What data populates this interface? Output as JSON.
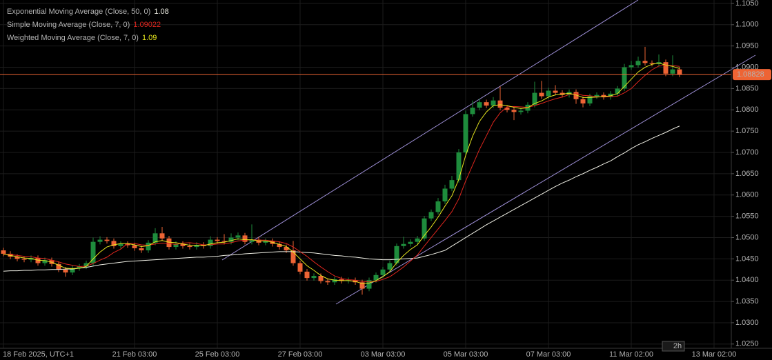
{
  "chart_data": {
    "type": "candlestick",
    "categories": [
      "18 Feb 2025, UTC+1",
      null,
      null,
      null,
      null,
      null,
      null,
      null,
      null,
      null,
      null,
      null,
      null,
      null,
      null,
      null,
      null,
      null,
      null,
      "21 Feb 03:00",
      null,
      null,
      null,
      null,
      null,
      null,
      null,
      null,
      null,
      null,
      null,
      "25 Feb 03:00",
      null,
      null,
      null,
      null,
      null,
      null,
      null,
      null,
      null,
      null,
      null,
      "27 Feb 03:00",
      null,
      null,
      null,
      null,
      null,
      null,
      null,
      null,
      null,
      null,
      null,
      "03 Mar 03:00",
      null,
      null,
      null,
      null,
      null,
      null,
      null,
      null,
      null,
      null,
      null,
      "05 Mar 03:00",
      null,
      null,
      null,
      null,
      null,
      null,
      null,
      null,
      null,
      null,
      null,
      "07 Mar 03:00",
      null,
      null,
      null,
      null,
      null,
      null,
      null,
      null,
      null,
      null,
      null,
      "11 Mar 02:00",
      null,
      null,
      null,
      null,
      null,
      null,
      null,
      null,
      null,
      null,
      null,
      "13 Mar 02:00"
    ],
    "ohlc": [
      [
        1.047,
        1.0476,
        1.0456,
        1.0462
      ],
      [
        1.0462,
        1.0468,
        1.0449,
        1.0455
      ],
      [
        1.0455,
        1.0461,
        1.0444,
        1.045
      ],
      [
        1.045,
        1.0456,
        1.0442,
        1.0448
      ],
      [
        1.0448,
        1.0458,
        1.0442,
        1.0452
      ],
      [
        1.0452,
        1.0458,
        1.0434,
        1.044
      ],
      [
        1.044,
        1.0453,
        1.0434,
        1.0447
      ],
      [
        1.0447,
        1.0453,
        1.0432,
        1.0438
      ],
      [
        1.0438,
        1.0444,
        1.0419,
        1.0425
      ],
      [
        1.0425,
        1.0431,
        1.0408,
        1.0418
      ],
      [
        1.0418,
        1.0434,
        1.0412,
        1.0428
      ],
      [
        1.0428,
        1.0438,
        1.0422,
        1.0432
      ],
      [
        1.0432,
        1.0446,
        1.0426,
        1.044
      ],
      [
        1.044,
        1.05,
        1.0434,
        1.049
      ],
      [
        1.049,
        1.0503,
        1.0484,
        1.0495
      ],
      [
        1.0495,
        1.0501,
        1.0486,
        1.0492
      ],
      [
        1.0492,
        1.0498,
        1.0474,
        1.048
      ],
      [
        1.048,
        1.0491,
        1.0474,
        1.0485
      ],
      [
        1.0485,
        1.0491,
        1.0476,
        1.0482
      ],
      [
        1.0482,
        1.0488,
        1.0469,
        1.0475
      ],
      [
        1.0475,
        1.0481,
        1.0464,
        1.047
      ],
      [
        1.047,
        1.0494,
        1.0464,
        1.0488
      ],
      [
        1.0488,
        1.0522,
        1.0482,
        1.051
      ],
      [
        1.051,
        1.0525,
        1.0492,
        1.0498
      ],
      [
        1.0498,
        1.0504,
        1.0472,
        1.0478
      ],
      [
        1.0478,
        1.0491,
        1.0472,
        1.0485
      ],
      [
        1.0485,
        1.0491,
        1.0474,
        1.048
      ],
      [
        1.048,
        1.0486,
        1.0472,
        1.0478
      ],
      [
        1.0478,
        1.0489,
        1.0472,
        1.0483
      ],
      [
        1.0483,
        1.0489,
        1.0474,
        1.048
      ],
      [
        1.048,
        1.0503,
        1.0474,
        1.0495
      ],
      [
        1.0495,
        1.0501,
        1.0486,
        1.0492
      ],
      [
        1.0492,
        1.0508,
        1.0484,
        1.049
      ],
      [
        1.049,
        1.051,
        1.0484,
        1.05
      ],
      [
        1.05,
        1.0512,
        1.0494,
        1.0505
      ],
      [
        1.0505,
        1.0511,
        1.0484,
        1.049
      ],
      [
        1.049,
        1.0531,
        1.0484,
        1.0495
      ],
      [
        1.0495,
        1.0501,
        1.0482,
        1.0488
      ],
      [
        1.0488,
        1.0498,
        1.0482,
        1.0492
      ],
      [
        1.0492,
        1.0498,
        1.0479,
        1.0485
      ],
      [
        1.0485,
        1.0491,
        1.0472,
        1.0478
      ],
      [
        1.0478,
        1.0484,
        1.0464,
        1.047
      ],
      [
        1.047,
        1.0492,
        1.0434,
        1.044
      ],
      [
        1.044,
        1.0446,
        1.0414,
        1.042
      ],
      [
        1.042,
        1.0426,
        1.0399,
        1.0405
      ],
      [
        1.0405,
        1.0416,
        1.0399,
        1.041
      ],
      [
        1.041,
        1.0416,
        1.0392,
        1.0398
      ],
      [
        1.0398,
        1.0404,
        1.0389,
        1.0395
      ],
      [
        1.0395,
        1.0408,
        1.0389,
        1.0402
      ],
      [
        1.0402,
        1.0408,
        1.0392,
        1.0398
      ],
      [
        1.0398,
        1.0406,
        1.0392,
        1.04
      ],
      [
        1.04,
        1.0406,
        1.0389,
        1.0395
      ],
      [
        1.0395,
        1.0401,
        1.0366,
        1.038
      ],
      [
        1.038,
        1.0406,
        1.0374,
        1.04
      ],
      [
        1.04,
        1.0418,
        1.0394,
        1.0412
      ],
      [
        1.0412,
        1.0431,
        1.0406,
        1.0425
      ],
      [
        1.0425,
        1.0446,
        1.0419,
        1.044
      ],
      [
        1.044,
        1.0486,
        1.0434,
        1.048
      ],
      [
        1.048,
        1.0502,
        1.0474,
        1.0485
      ],
      [
        1.0485,
        1.0496,
        1.0479,
        1.049
      ],
      [
        1.049,
        1.0504,
        1.0484,
        1.0498
      ],
      [
        1.0498,
        1.0551,
        1.0492,
        1.0545
      ],
      [
        1.0545,
        1.0566,
        1.0539,
        1.056
      ],
      [
        1.056,
        1.0593,
        1.0554,
        1.0585
      ],
      [
        1.0585,
        1.0624,
        1.0579,
        1.0615
      ],
      [
        1.0615,
        1.0645,
        1.0609,
        1.0635
      ],
      [
        1.0635,
        1.0708,
        1.0629,
        1.07
      ],
      [
        1.07,
        1.0798,
        1.0694,
        1.079
      ],
      [
        1.079,
        1.0822,
        1.0784,
        1.0805
      ],
      [
        1.0805,
        1.0826,
        1.0799,
        1.0818
      ],
      [
        1.0818,
        1.0824,
        1.0804,
        1.081
      ],
      [
        1.081,
        1.083,
        1.0804,
        1.0822
      ],
      [
        1.0822,
        1.0855,
        1.0799,
        1.0805
      ],
      [
        1.0805,
        1.0811,
        1.0794,
        1.08
      ],
      [
        1.08,
        1.0806,
        1.0776,
        1.0795
      ],
      [
        1.0795,
        1.0804,
        1.0789,
        1.0798
      ],
      [
        1.0798,
        1.0818,
        1.0792,
        1.0812
      ],
      [
        1.0812,
        1.0866,
        1.0806,
        1.084
      ],
      [
        1.084,
        1.0868,
        1.0826,
        1.0832
      ],
      [
        1.0832,
        1.0852,
        1.0826,
        1.0845
      ],
      [
        1.0845,
        1.0858,
        1.0834,
        1.084
      ],
      [
        1.084,
        1.0846,
        1.0829,
        1.0835
      ],
      [
        1.0835,
        1.0848,
        1.0829,
        1.0842
      ],
      [
        1.0842,
        1.0848,
        1.0814,
        1.0825
      ],
      [
        1.0825,
        1.0831,
        1.0806,
        1.0815
      ],
      [
        1.0815,
        1.0838,
        1.0809,
        1.0832
      ],
      [
        1.0832,
        1.0841,
        1.0826,
        1.0835
      ],
      [
        1.0835,
        1.0841,
        1.0824,
        1.083
      ],
      [
        1.083,
        1.0844,
        1.0824,
        1.0838
      ],
      [
        1.0838,
        1.0856,
        1.0832,
        1.085
      ],
      [
        1.085,
        1.0908,
        1.0844,
        1.09
      ],
      [
        1.09,
        1.0915,
        1.0894,
        1.0905
      ],
      [
        1.0905,
        1.0925,
        1.0899,
        1.0915
      ],
      [
        1.0915,
        1.0948,
        1.0904,
        1.091
      ],
      [
        1.091,
        1.0916,
        1.0902,
        1.0908
      ],
      [
        1.0908,
        1.093,
        1.0902,
        1.0912
      ],
      [
        1.0912,
        1.0918,
        1.0879,
        1.0885
      ],
      [
        1.0885,
        1.0928,
        1.0879,
        1.0895
      ],
      [
        1.0895,
        1.0901,
        1.0877,
        1.0883
      ],
      null,
      null,
      null,
      null,
      null
    ],
    "up_color": "#1e8c3c",
    "down_color": "#ee6434",
    "series": [
      {
        "name": "Exponential Moving Average (Close, 50, 0)",
        "color": "#f0f0e6",
        "legend_value": 1.08,
        "values": [
          1.0421,
          1.0422,
          1.0422,
          1.0423,
          1.0423,
          1.0424,
          1.0424,
          1.0425,
          1.0425,
          1.0426,
          1.0426,
          1.0428,
          1.043,
          1.0433,
          1.0436,
          1.0438,
          1.044,
          1.0442,
          1.0444,
          1.0445,
          1.0446,
          1.0447,
          1.0448,
          1.0449,
          1.045,
          1.0451,
          1.0452,
          1.0453,
          1.0454,
          1.0454,
          1.0455,
          1.0456,
          1.0458,
          1.0459,
          1.046,
          1.0462,
          1.0463,
          1.0464,
          1.0465,
          1.0466,
          1.0467,
          1.0467,
          1.0467,
          1.0466,
          1.0465,
          1.0464,
          1.0462,
          1.046,
          1.0458,
          1.0457,
          1.0455,
          1.0454,
          1.0452,
          1.045,
          1.0449,
          1.0448,
          1.0448,
          1.0449,
          1.045,
          1.0451,
          1.0452,
          1.0456,
          1.046,
          1.0465,
          1.047,
          1.048,
          1.049,
          1.05,
          1.051,
          1.052,
          1.053,
          1.0539,
          1.0548,
          1.0557,
          1.0566,
          1.0575,
          1.0584,
          1.0593,
          1.0602,
          1.0611,
          1.062,
          1.0628,
          1.0635,
          1.0643,
          1.065,
          1.0658,
          1.0665,
          1.0673,
          1.068,
          1.069,
          1.0699,
          1.0709,
          1.0718,
          1.0725,
          1.0733,
          1.074,
          1.0747,
          1.0755,
          1.0762,
          null,
          null,
          null,
          null,
          null
        ]
      },
      {
        "name": "Simple Moving Average (Close, 7, 0)",
        "color": "#e0261e",
        "legend_value": 1.09022,
        "values": [
          1.046,
          1.046,
          1.0458,
          1.0456,
          1.0455,
          1.0452,
          1.0451,
          1.0447,
          1.0443,
          1.0438,
          1.0435,
          1.0432,
          1.0433,
          1.0439,
          1.0447,
          1.0454,
          1.0465,
          1.0473,
          1.0486,
          1.0486,
          1.0483,
          1.0482,
          1.0485,
          1.0487,
          1.0486,
          1.0484,
          1.0487,
          1.0488,
          1.0486,
          1.0483,
          1.0483,
          1.0485,
          1.0485,
          1.0488,
          1.0492,
          1.0494,
          1.0495,
          1.0494,
          1.0494,
          1.0492,
          1.049,
          1.0486,
          1.0478,
          1.0467,
          1.0456,
          1.0443,
          1.0431,
          1.042,
          1.041,
          1.0404,
          1.0401,
          1.04,
          1.0397,
          1.0396,
          1.0397,
          1.0402,
          1.0408,
          1.0419,
          1.0431,
          1.0445,
          1.0459,
          1.048,
          1.05,
          1.052,
          1.054,
          1.0561,
          1.0591,
          1.0633,
          1.067,
          1.0707,
          1.0739,
          1.0771,
          1.0793,
          1.0807,
          1.0808,
          1.0807,
          1.0806,
          1.081,
          1.0815,
          1.0821,
          1.0826,
          1.083,
          1.0836,
          1.0838,
          1.0834,
          1.0833,
          1.0831,
          1.083,
          1.0831,
          1.0832,
          1.084,
          1.085,
          1.0866,
          1.0881,
          1.0894,
          1.0903,
          1.0904,
          1.0904,
          1.0902,
          null,
          null,
          null,
          null,
          null
        ]
      },
      {
        "name": "Weighted Moving Average (Close, 7, 0)",
        "color": "#e6e61e",
        "legend_value": 1.09,
        "values": [
          1.0461,
          1.0458,
          1.0455,
          1.0452,
          1.0451,
          1.0447,
          1.0446,
          1.0442,
          1.0435,
          1.0428,
          1.0427,
          1.0428,
          1.0432,
          1.045,
          1.0466,
          1.0478,
          1.0483,
          1.0486,
          1.0486,
          1.0483,
          1.0479,
          1.0481,
          1.049,
          1.0493,
          1.0489,
          1.0488,
          1.0485,
          1.0482,
          1.0482,
          1.0481,
          1.0485,
          1.0488,
          1.0489,
          1.0493,
          1.0497,
          1.0495,
          1.0495,
          1.0492,
          1.0492,
          1.0489,
          1.0484,
          1.0479,
          1.0466,
          1.045,
          1.0434,
          1.0423,
          1.0411,
          1.0403,
          1.04,
          1.0399,
          1.0399,
          1.0397,
          1.0392,
          1.0393,
          1.0399,
          1.0408,
          1.042,
          1.0441,
          1.0458,
          1.0472,
          1.0483,
          1.0505,
          1.0525,
          1.0548,
          1.0574,
          1.0598,
          1.0637,
          1.0693,
          1.0738,
          1.0773,
          1.0795,
          1.081,
          1.0812,
          1.081,
          1.0806,
          1.0803,
          1.0805,
          1.0815,
          1.0821,
          1.083,
          1.0835,
          1.0837,
          1.0839,
          1.0835,
          1.0829,
          1.0829,
          1.083,
          1.0831,
          1.0833,
          1.0838,
          1.0855,
          1.0872,
          1.0889,
          1.09,
          1.0907,
          1.091,
          1.0905,
          1.0902,
          1.0897,
          null,
          null,
          null,
          null,
          null
        ]
      }
    ],
    "ylim": [
      1.024,
      1.1058
    ],
    "yticks": [
      {
        "value": 1.025,
        "label": "1.0250"
      },
      {
        "value": 1.03,
        "label": "1.0300"
      },
      {
        "value": 1.035,
        "label": "1.0350"
      },
      {
        "value": 1.04,
        "label": "1.0400"
      },
      {
        "value": 1.045,
        "label": "1.0450"
      },
      {
        "value": 1.05,
        "label": "1.0500"
      },
      {
        "value": 1.055,
        "label": "1.0550"
      },
      {
        "value": 1.06,
        "label": "1.0600"
      },
      {
        "value": 1.065,
        "label": "1.0650"
      },
      {
        "value": 1.07,
        "label": "1.0700"
      },
      {
        "value": 1.075,
        "label": "1.0750"
      },
      {
        "value": 1.08,
        "label": "1.0800"
      },
      {
        "value": 1.085,
        "label": "1.0850"
      },
      {
        "value": 1.09,
        "label": "1.0900"
      },
      {
        "value": 1.095,
        "label": "1.0950"
      },
      {
        "value": 1.1,
        "label": "1.1000"
      },
      {
        "value": 1.105,
        "label": "1.1050"
      }
    ],
    "grid": true,
    "last_price": 1.08828,
    "last_price_color": "#ee6434",
    "timeframe": "2h"
  }
}
